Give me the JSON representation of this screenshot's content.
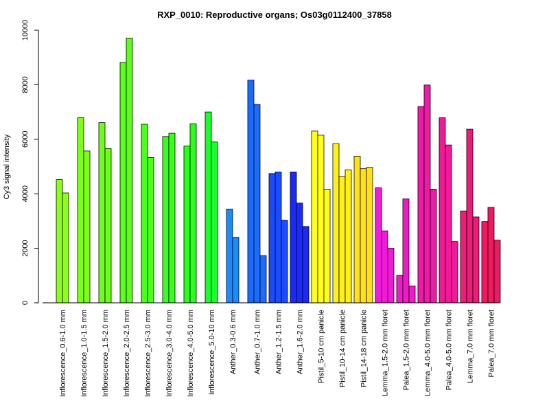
{
  "chart_data": {
    "type": "bar",
    "title": "RXP_0010: Reproductive organs; Os03g0112400_37858",
    "xlabel": "",
    "ylabel": "Cy3 signal intensity",
    "ylim": [
      0,
      10000
    ],
    "yticks": [
      0,
      2000,
      4000,
      6000,
      8000,
      10000
    ],
    "grid": false,
    "legend": "none",
    "groups": [
      {
        "label": "Inflorescence_0.6-1.0 mm",
        "values": [
          4520,
          4030
        ],
        "color": "#8cff1a"
      },
      {
        "label": "Inflorescence_1.0-1.5 mm",
        "values": [
          6790,
          5570
        ],
        "color": "#7dff1a"
      },
      {
        "label": "Inflorescence_1.5-2.0 mm",
        "values": [
          6610,
          5660
        ],
        "color": "#6cff1a"
      },
      {
        "label": "Inflorescence_2.0-2.5 mm",
        "values": [
          8820,
          9710
        ],
        "color": "#5bff1a"
      },
      {
        "label": "Inflorescence_2.5-3.0 mm",
        "values": [
          6550,
          5330
        ],
        "color": "#4bff1a"
      },
      {
        "label": "Inflorescence_3.0-4.0 mm",
        "values": [
          6100,
          6220
        ],
        "color": "#3aff1a"
      },
      {
        "label": "Inflorescence_4.0-5.0 mm",
        "values": [
          5750,
          6570
        ],
        "color": "#2aff1a"
      },
      {
        "label": "Inflorescence_5.0-10 mm",
        "values": [
          7000,
          5900
        ],
        "color": "#1aff2c"
      },
      {
        "label": "Anther_0.3-0.6 mm",
        "values": [
          3440,
          2400
        ],
        "color": "#1a8cff"
      },
      {
        "label": "Anther_0.7-1.0 mm",
        "values": [
          8170,
          7280,
          1730
        ],
        "color": "#1a6cff"
      },
      {
        "label": "Anther_1.2-1.5 mm",
        "values": [
          4740,
          4800,
          3030
        ],
        "color": "#1a4bff"
      },
      {
        "label": "Anther_1.6-2.0 mm",
        "values": [
          4800,
          3660,
          2800
        ],
        "color": "#1a2aff"
      },
      {
        "label": "Pistil_5-10 cm panicle",
        "values": [
          6300,
          6150,
          4170
        ],
        "color": "#ffff1a"
      },
      {
        "label": "Pistil_10-14 cm panicle",
        "values": [
          5840,
          4630,
          4880
        ],
        "color": "#fff01a"
      },
      {
        "label": "Pistil_14-18 cm panicle",
        "values": [
          5380,
          4920,
          4970
        ],
        "color": "#ffe01a"
      },
      {
        "label": "Lemma_1.5-2.0 mm floret",
        "values": [
          4220,
          2640,
          2000
        ],
        "color": "#f01ad8"
      },
      {
        "label": "Palea_1.5-2.0 mm floret",
        "values": [
          1010,
          3810,
          620
        ],
        "color": "#f01ac8"
      },
      {
        "label": "Lemma_4.0-5.0 mm floret",
        "values": [
          7200,
          7990,
          4170
        ],
        "color": "#f01aa8"
      },
      {
        "label": "Palea_4.0-5.0 mm floret",
        "values": [
          6790,
          5790,
          2250
        ],
        "color": "#f01a98"
      },
      {
        "label": "Lemma_7.0 mm floret",
        "values": [
          3370,
          6370,
          3150
        ],
        "color": "#f01a78"
      },
      {
        "label": "Palea_7.0 mm floret",
        "values": [
          2980,
          3500,
          2300
        ],
        "color": "#f01a60"
      }
    ]
  }
}
